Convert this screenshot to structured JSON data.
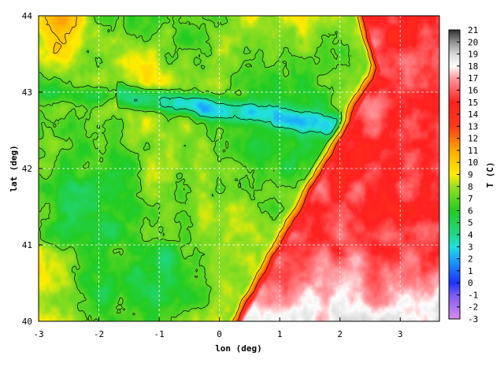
{
  "chart_data": {
    "type": "heatmap",
    "title": "",
    "xlabel": "lon (deg)",
    "ylabel": "lat (deg)",
    "colorbar_label": "T (C)",
    "xlim": [
      -3,
      3.65
    ],
    "ylim": [
      40,
      44
    ],
    "x_ticks": [
      -3,
      -2,
      -1,
      0,
      1,
      2,
      3
    ],
    "y_ticks": [
      40,
      41,
      42,
      43,
      44
    ],
    "grid": true,
    "colorbar_ticks": [
      -3,
      -2,
      -1,
      0,
      1,
      2,
      3,
      4,
      5,
      6,
      7,
      8,
      9,
      10,
      11,
      12,
      13,
      14,
      15,
      16,
      17,
      18,
      19,
      20,
      21
    ],
    "colorbar_range": [
      -3,
      21
    ],
    "colormap_stops": [
      {
        "value": -3,
        "color": "#d98cf0"
      },
      {
        "value": -1,
        "color": "#7a5cf0"
      },
      {
        "value": 0,
        "color": "#1a33ff"
      },
      {
        "value": 2,
        "color": "#1aa6ff"
      },
      {
        "value": 3,
        "color": "#22e0e0"
      },
      {
        "value": 4,
        "color": "#20d88a"
      },
      {
        "value": 6,
        "color": "#22cc22"
      },
      {
        "value": 8,
        "color": "#9ae020"
      },
      {
        "value": 9,
        "color": "#ffee00"
      },
      {
        "value": 11,
        "color": "#ffaa00"
      },
      {
        "value": 13,
        "color": "#ff3a1a"
      },
      {
        "value": 15,
        "color": "#ff2020"
      },
      {
        "value": 17,
        "color": "#ff9aa0"
      },
      {
        "value": 18,
        "color": "#ffffff"
      },
      {
        "value": 19,
        "color": "#d8d8d8"
      },
      {
        "value": 20,
        "color": "#909090"
      },
      {
        "value": 21,
        "color": "#303030"
      }
    ],
    "field_features": [
      {
        "kind": "ridge",
        "lon_start": -1.6,
        "lon_end": 2.5,
        "lat_start": 42.95,
        "lat_end": 42.5,
        "value": 0.5,
        "spread": 0.12
      },
      {
        "kind": "blob",
        "lon": -2.3,
        "lat": 41.45,
        "value": 2.0,
        "spread": 0.45
      },
      {
        "kind": "blob",
        "lon": -1.0,
        "lat": 40.65,
        "value": 3.0,
        "spread": 0.3
      },
      {
        "kind": "blob",
        "lon": -1.9,
        "lat": 40.55,
        "value": 3.5,
        "spread": 0.25
      },
      {
        "kind": "blob",
        "lon": -1.8,
        "lat": 42.05,
        "value": 5.0,
        "spread": 0.5
      },
      {
        "kind": "blob",
        "lon": 0.8,
        "lat": 42.1,
        "value": 6.0,
        "spread": 0.6
      },
      {
        "kind": "blob",
        "lon": 0.2,
        "lat": 41.35,
        "value": 9.0,
        "spread": 0.45
      },
      {
        "kind": "blob",
        "lon": -2.6,
        "lat": 43.8,
        "value": 14.0,
        "spread": 0.35
      },
      {
        "kind": "blob",
        "lon": -1.3,
        "lat": 43.3,
        "value": 10.5,
        "spread": 0.3
      },
      {
        "kind": "blob",
        "lon": 3.0,
        "lat": 43.7,
        "value": 6.0,
        "spread": 0.25
      },
      {
        "kind": "blob",
        "lon": 2.9,
        "lat": 40.05,
        "value": 19.5,
        "spread": 0.35
      },
      {
        "kind": "blob",
        "lon": 1.6,
        "lat": 40.35,
        "value": 18.0,
        "spread": 0.5
      }
    ],
    "sea_warm_region": {
      "kind": "southeast",
      "value": 15.5
    }
  }
}
